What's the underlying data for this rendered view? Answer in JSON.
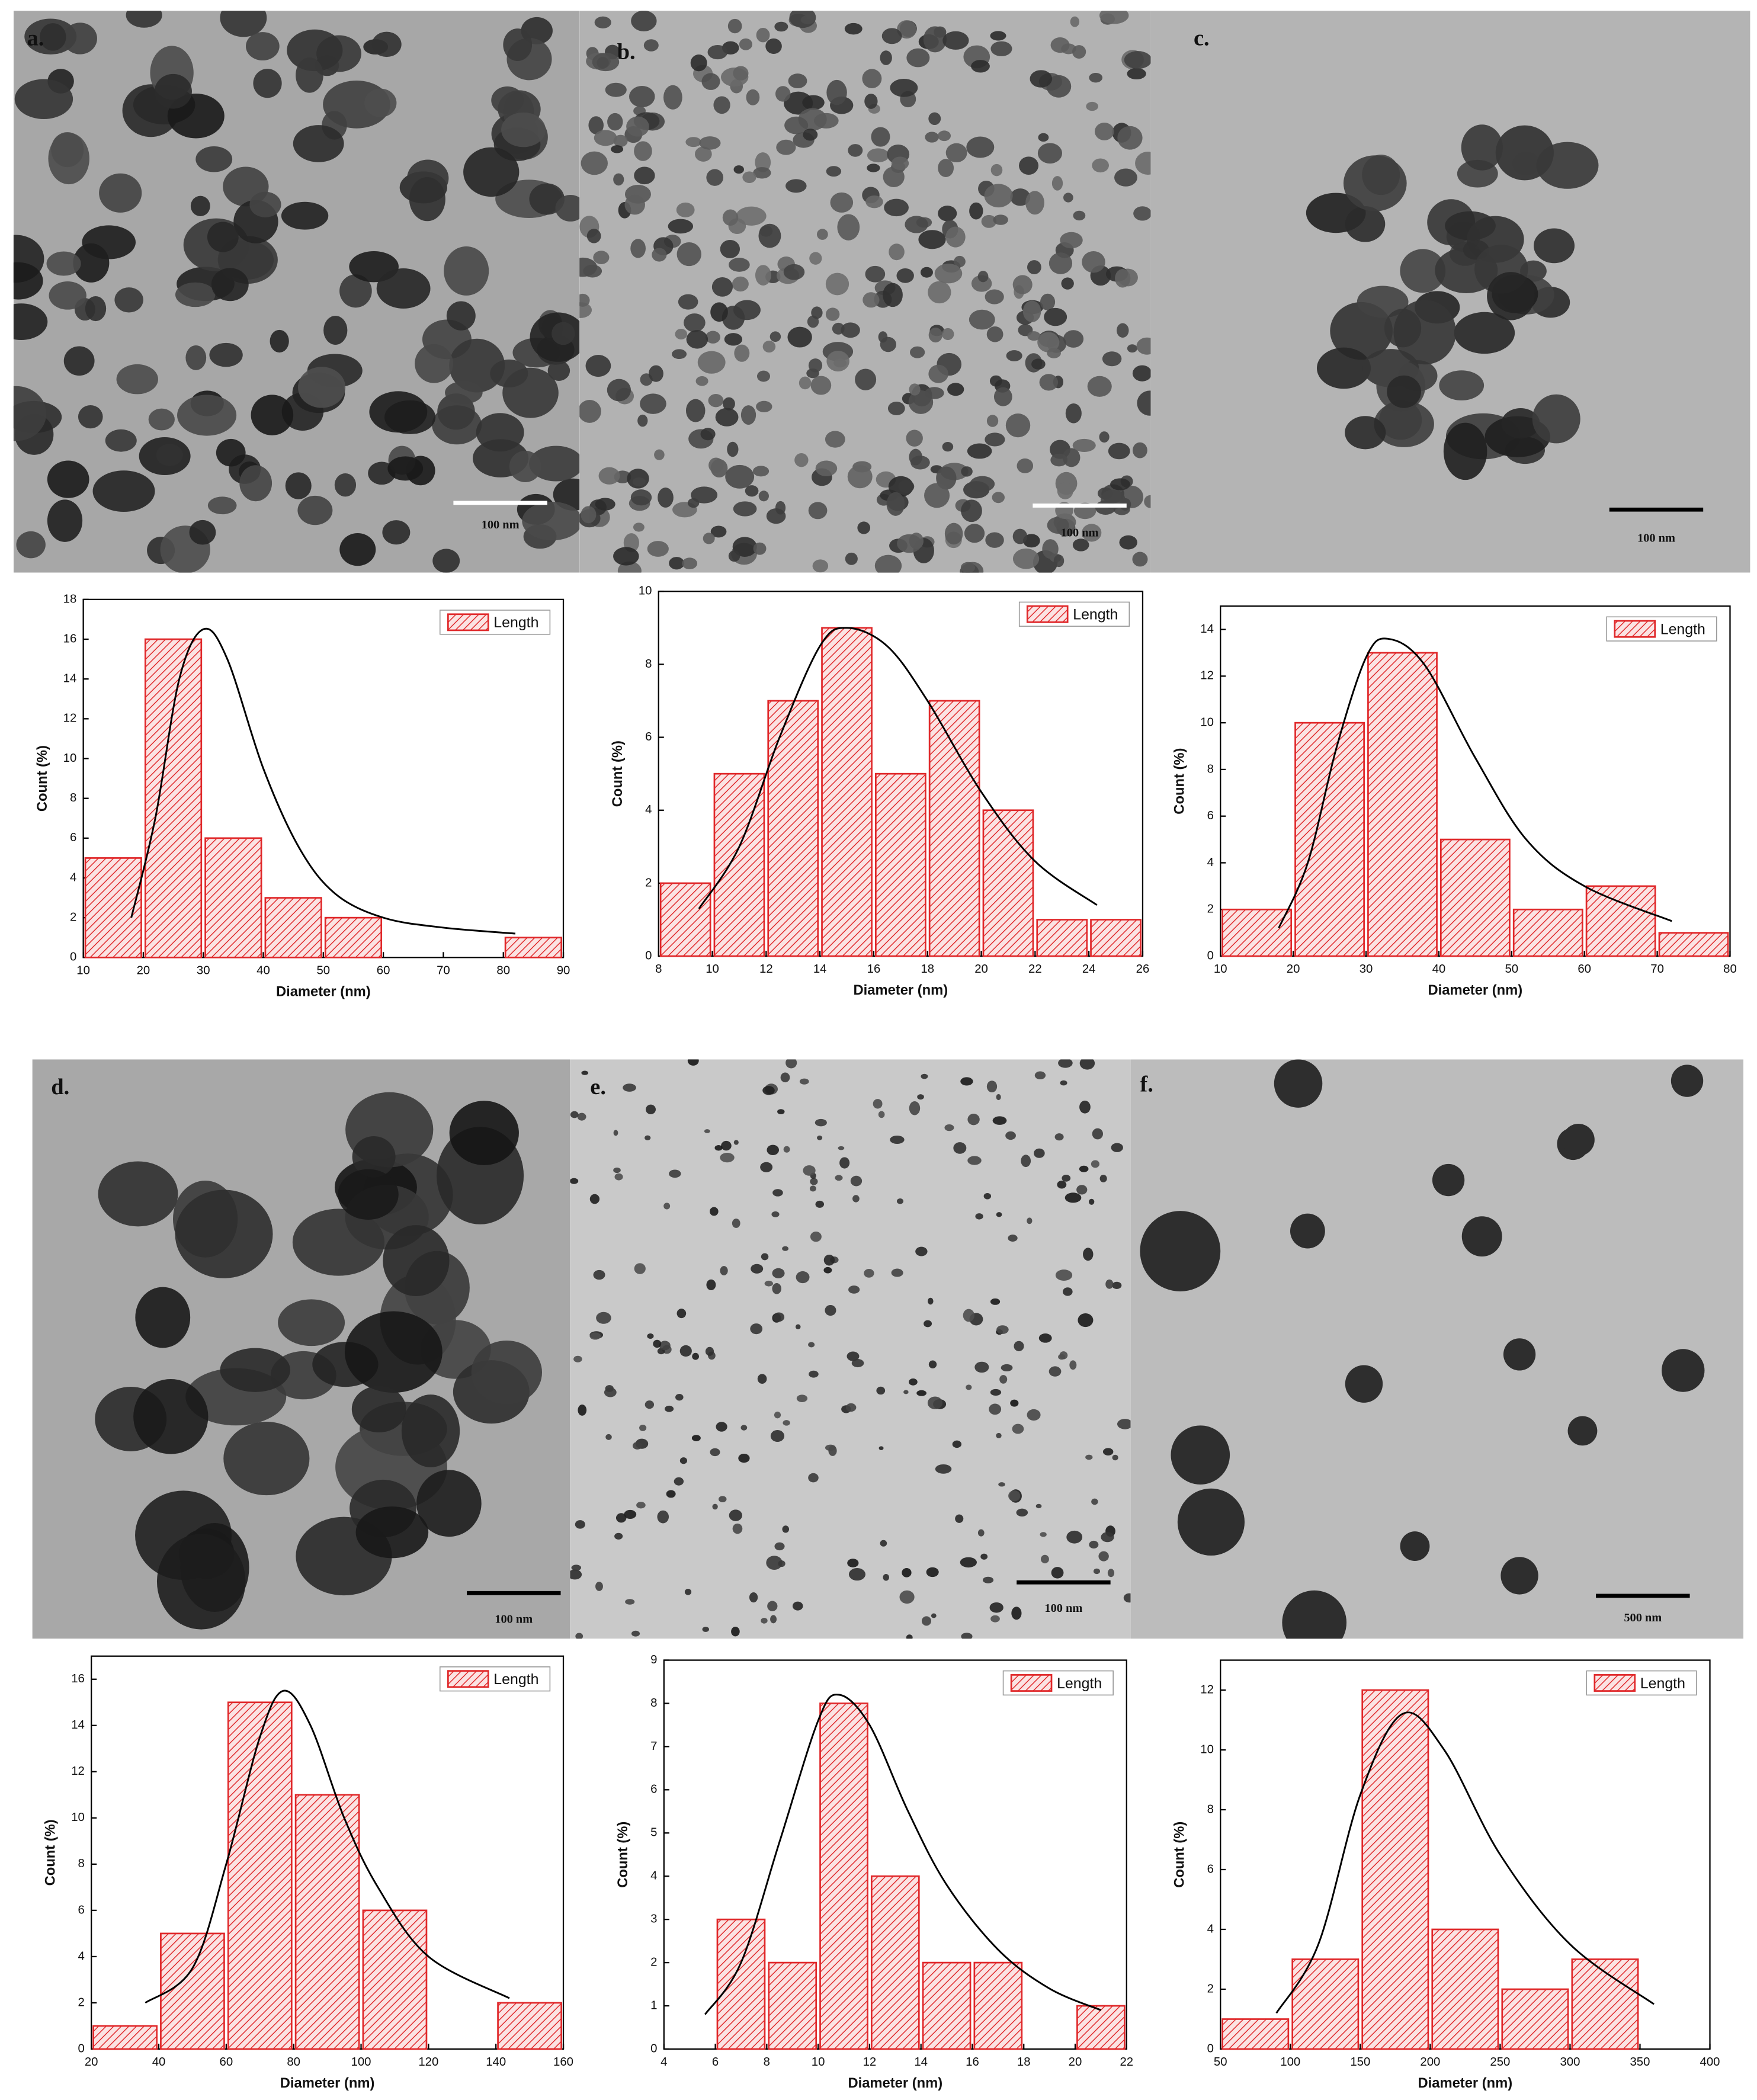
{
  "chart_data": [
    {
      "type": "histogram",
      "xlabel": "Diameter (nm)",
      "ylabel": "Count (%)",
      "bins": [
        10,
        20,
        30,
        40,
        50,
        60,
        70,
        80,
        90
      ],
      "series": [
        {
          "name": "Length",
          "color": "#e0282a",
          "values": [
            5,
            16,
            6,
            3,
            2,
            0,
            0,
            1
          ]
        }
      ],
      "fit": {
        "x": [
          18,
          22,
          26,
          30,
          34,
          40,
          46,
          52,
          60,
          70,
          82
        ],
        "y": [
          2,
          7,
          14,
          16.5,
          15,
          9.5,
          5.5,
          3.2,
          2,
          1.5,
          1.2
        ],
        "color": "#000000"
      },
      "xlim": [
        10,
        90
      ],
      "xticks": [
        10,
        20,
        30,
        40,
        50,
        60,
        70,
        80,
        90
      ],
      "ylim": [
        0,
        18
      ],
      "yticks": [
        0,
        2,
        4,
        6,
        8,
        10,
        12,
        14,
        16,
        18
      ],
      "legend": "upper right"
    },
    {
      "type": "histogram",
      "xlabel": "Diameter (nm)",
      "ylabel": "Count (%)",
      "bins": [
        8,
        10,
        12,
        14,
        16,
        18,
        20,
        22,
        24,
        26
      ],
      "series": [
        {
          "name": "Length",
          "color": "#e0282a",
          "values": [
            2,
            5,
            7,
            9,
            5,
            7,
            4,
            1,
            1
          ]
        }
      ],
      "fit": {
        "x": [
          9.5,
          11,
          12.5,
          14,
          15,
          16.5,
          18,
          20,
          22,
          24.3
        ],
        "y": [
          1.3,
          3,
          6,
          8.5,
          9,
          8.5,
          7,
          4.5,
          2.6,
          1.4
        ],
        "color": "#000000"
      },
      "xlim": [
        8,
        26
      ],
      "xticks": [
        8,
        10,
        12,
        14,
        16,
        18,
        20,
        22,
        24,
        26
      ],
      "ylim": [
        0,
        10
      ],
      "yticks": [
        0,
        2,
        4,
        6,
        8,
        10
      ],
      "legend": "upper right"
    },
    {
      "type": "histogram",
      "xlabel": "Diameter (nm)",
      "ylabel": "Count (%)",
      "bins": [
        10,
        20,
        30,
        40,
        50,
        60,
        70,
        80
      ],
      "series": [
        {
          "name": "Length",
          "color": "#e0282a",
          "values": [
            2,
            10,
            13,
            5,
            2,
            3,
            1
          ]
        }
      ],
      "fit": {
        "x": [
          18,
          22,
          26,
          30,
          33,
          38,
          45,
          52,
          60,
          72
        ],
        "y": [
          1.2,
          4,
          9,
          12.8,
          13.6,
          12.5,
          8.5,
          5,
          3,
          1.5
        ],
        "color": "#000000"
      },
      "xlim": [
        10,
        80
      ],
      "xticks": [
        10,
        20,
        30,
        40,
        50,
        60,
        70,
        80
      ],
      "ylim": [
        0,
        15
      ],
      "yticks": [
        0,
        2,
        4,
        6,
        8,
        10,
        12,
        14
      ],
      "legend": "upper right"
    },
    {
      "type": "histogram",
      "xlabel": "Diameter (nm)",
      "ylabel": "Count (%)",
      "bins": [
        20,
        40,
        60,
        80,
        100,
        120,
        140,
        160
      ],
      "series": [
        {
          "name": "Length",
          "color": "#e0282a",
          "values": [
            1,
            5,
            15,
            11,
            6,
            0,
            2
          ]
        }
      ],
      "fit": {
        "x": [
          36,
          50,
          60,
          70,
          77,
          85,
          95,
          105,
          120,
          144
        ],
        "y": [
          2,
          3.5,
          8,
          13.5,
          15.5,
          14,
          10,
          7,
          4,
          2.2
        ],
        "color": "#000000"
      },
      "xlim": [
        20,
        160
      ],
      "xticks": [
        20,
        40,
        60,
        80,
        100,
        120,
        140,
        160
      ],
      "ylim": [
        0,
        17
      ],
      "yticks": [
        0,
        2,
        4,
        6,
        8,
        10,
        12,
        14,
        16
      ],
      "legend": "upper right"
    },
    {
      "type": "histogram",
      "xlabel": "Diameter (nm)",
      "ylabel": "Count (%)",
      "bins": [
        6,
        8,
        10,
        12,
        14,
        16,
        18,
        20,
        22
      ],
      "series": [
        {
          "name": "Length",
          "color": "#e0282a",
          "values": [
            3,
            2,
            8,
            4,
            2,
            2,
            0,
            1
          ]
        }
      ],
      "fit": {
        "x": [
          5.6,
          7,
          8.5,
          10,
          10.8,
          12,
          13.5,
          15,
          17,
          19,
          21
        ],
        "y": [
          0.8,
          2,
          4.8,
          7.6,
          8.2,
          7.5,
          5.5,
          3.8,
          2.3,
          1.4,
          0.9
        ],
        "color": "#000000"
      },
      "xlim": [
        4,
        22
      ],
      "xticks": [
        4,
        6,
        8,
        10,
        12,
        14,
        16,
        18,
        20,
        22
      ],
      "ylim": [
        0,
        9
      ],
      "yticks": [
        0,
        1,
        2,
        3,
        4,
        5,
        6,
        7,
        8,
        9
      ],
      "legend": "upper right"
    },
    {
      "type": "histogram",
      "xlabel": "Diameter (nm)",
      "ylabel": "Count (%)",
      "bins": [
        50,
        100,
        150,
        200,
        250,
        300,
        350
      ],
      "series": [
        {
          "name": "Length",
          "color": "#e0282a",
          "values": [
            1,
            3,
            12,
            4,
            2,
            3
          ]
        }
      ],
      "fit": {
        "x": [
          90,
          120,
          150,
          180,
          210,
          250,
          300,
          360
        ],
        "y": [
          1.2,
          3.5,
          8.5,
          11.2,
          10,
          6.5,
          3.5,
          1.5
        ],
        "color": "#000000"
      },
      "xlim": [
        50,
        400
      ],
      "xticks": [
        50,
        100,
        150,
        200,
        250,
        300,
        350,
        400
      ],
      "ylim": [
        0,
        13
      ],
      "yticks": [
        0,
        2,
        4,
        6,
        8,
        10,
        12
      ],
      "legend": "upper right"
    }
  ],
  "panels": [
    {
      "label": "a.",
      "scale_bar": "100 nm"
    },
    {
      "label": "b.",
      "scale_bar": "100 nm"
    },
    {
      "label": "c.",
      "scale_bar": "100 nm"
    },
    {
      "label": "d.",
      "scale_bar": "100 nm"
    },
    {
      "label": "e.",
      "scale_bar": "100 nm"
    },
    {
      "label": "f.",
      "scale_bar": "500 nm"
    }
  ]
}
